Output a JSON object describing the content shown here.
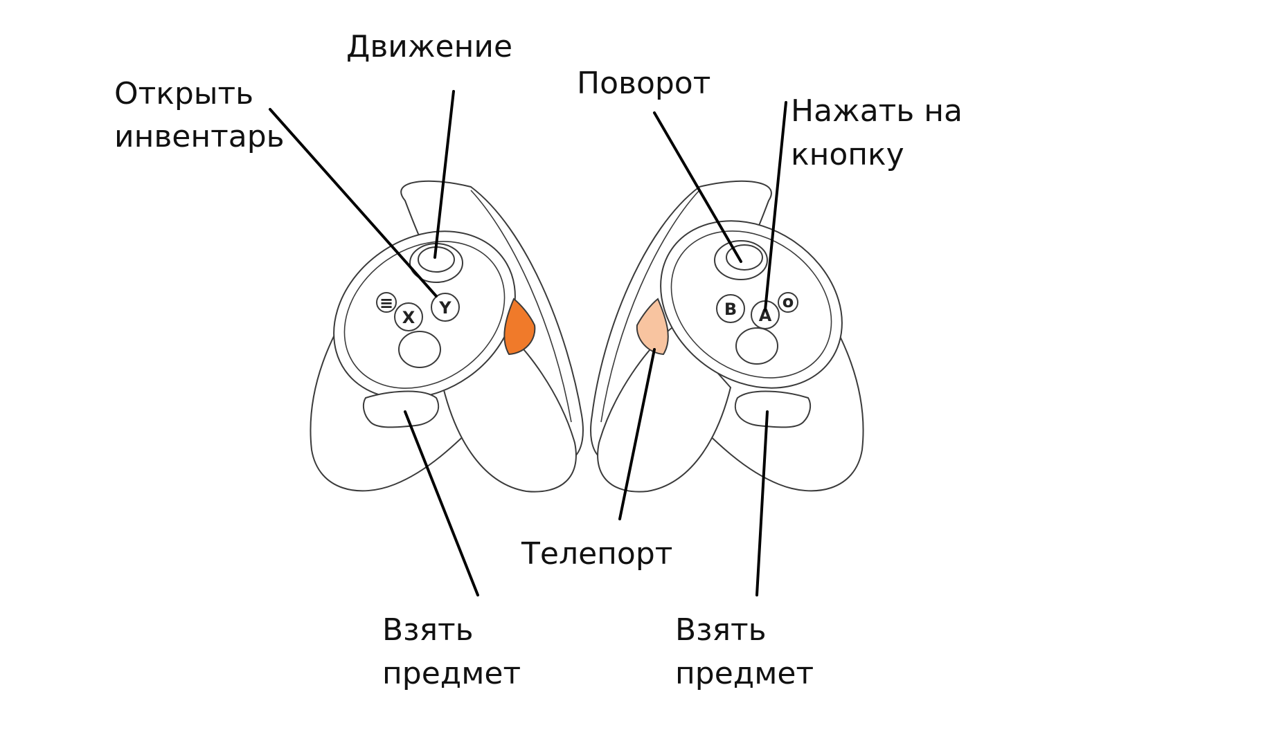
{
  "labels": {
    "movement": "Движение",
    "open_inventory_line1": "Открыть",
    "open_inventory_line2": "инвентарь",
    "rotation": "Поворот",
    "press_button_line1": "Нажать на",
    "press_button_line2": "кнопку",
    "teleport": "Телепорт",
    "grab_left_line1": "Взять",
    "grab_left_line2": "предмет",
    "grab_right_line1": "Взять",
    "grab_right_line2": "предмет"
  },
  "buttons": {
    "left": {
      "x": "X",
      "y": "Y",
      "menu": "≡"
    },
    "right": {
      "a": "A",
      "b": "B",
      "oculus": "o"
    }
  },
  "colors": {
    "left_trigger": "#f07a2a",
    "right_trigger": "#f8c4a0",
    "outline": "#3a3a3a",
    "pointer": "#000000"
  }
}
